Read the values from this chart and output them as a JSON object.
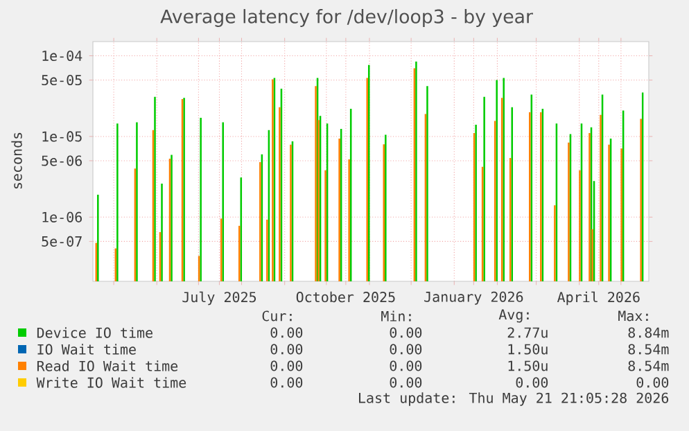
{
  "chart_data": {
    "type": "bar",
    "title": "Average latency for /dev/loop3 - by year",
    "ylabel": "seconds",
    "log": "y",
    "grid": true,
    "legend": "bottom",
    "xlim": [
      "2025-04-16",
      "2026-05-21"
    ],
    "xticks": [
      {
        "value": "2025-05-01",
        "label": null
      },
      {
        "value": "2025-06-01",
        "label": null
      },
      {
        "value": "2025-07-01",
        "label": null
      },
      {
        "value": "2025-07-16",
        "label": "July 2025"
      },
      {
        "value": "2025-08-01",
        "label": null
      },
      {
        "value": "2025-09-01",
        "label": null
      },
      {
        "value": "2025-10-01",
        "label": null
      },
      {
        "value": "2025-10-15",
        "label": "October 2025"
      },
      {
        "value": "2025-11-01",
        "label": null
      },
      {
        "value": "2025-12-01",
        "label": null
      },
      {
        "value": "2026-01-01",
        "label": null
      },
      {
        "value": "2026-01-15",
        "label": "January 2026"
      },
      {
        "value": "2026-02-01",
        "label": null
      },
      {
        "value": "2026-03-01",
        "label": null
      },
      {
        "value": "2026-04-01",
        "label": null
      },
      {
        "value": "2026-04-15",
        "label": "April 2026"
      },
      {
        "value": "2026-05-01",
        "label": null
      }
    ],
    "ylim": [
      1.6e-07,
      0.00015
    ],
    "yticks": [
      {
        "value": 5e-07,
        "label": "5e-07"
      },
      {
        "value": 1e-06,
        "label": "1e-06"
      },
      {
        "value": 5e-06,
        "label": "5e-06"
      },
      {
        "value": 1e-05,
        "label": "1e-05"
      },
      {
        "value": 5e-05,
        "label": "5e-05"
      },
      {
        "value": 0.0001,
        "label": "1e-04"
      }
    ],
    "x": [
      "2025-04-19",
      "2025-05-03",
      "2025-05-17",
      "2025-05-30",
      "2025-06-04",
      "2025-06-11",
      "2025-06-20",
      "2025-07-02",
      "2025-07-18",
      "2025-07-31",
      "2025-08-15",
      "2025-08-20",
      "2025-08-24",
      "2025-08-29",
      "2025-09-06",
      "2025-09-24",
      "2025-09-26",
      "2025-10-01",
      "2025-10-11",
      "2025-10-18",
      "2025-10-31",
      "2025-11-12",
      "2025-12-04",
      "2025-12-12",
      "2026-01-16",
      "2026-01-22",
      "2026-01-31",
      "2026-02-05",
      "2026-02-11",
      "2026-02-25",
      "2026-03-05",
      "2026-03-15",
      "2026-03-25",
      "2026-04-02",
      "2026-04-09",
      "2026-04-11",
      "2026-04-17",
      "2026-04-23",
      "2026-05-02",
      "2026-05-16"
    ],
    "series": [
      {
        "name": "Device IO time",
        "color": "#00cc00",
        "values": [
          1.9e-06,
          1.45e-05,
          1.5e-05,
          3.1e-05,
          2.6e-06,
          5.9e-06,
          3e-05,
          1.7e-05,
          1.5e-05,
          3.1e-06,
          6e-06,
          1.2e-05,
          5.3e-05,
          3.9e-05,
          8.7e-06,
          5.3e-05,
          1.8e-05,
          1.45e-05,
          1.24e-05,
          2.2e-05,
          7.7e-05,
          1.05e-05,
          8.5e-05,
          4.2e-05,
          1.4e-05,
          3.1e-05,
          5e-05,
          5.3e-05,
          2.3e-05,
          3.3e-05,
          2.2e-05,
          1.45e-05,
          1.07e-05,
          1.45e-05,
          1.3e-05,
          2.8e-06,
          3.3e-05,
          9.4e-06,
          2.1e-05,
          3.5e-05
        ]
      },
      {
        "name": "IO Wait time",
        "color": "#0066b3",
        "values": [
          null,
          null,
          null,
          null,
          null,
          null,
          null,
          null,
          null,
          null,
          null,
          null,
          null,
          null,
          null,
          null,
          null,
          null,
          null,
          null,
          null,
          null,
          null,
          null,
          null,
          null,
          null,
          null,
          null,
          null,
          null,
          null,
          null,
          null,
          null,
          null,
          null,
          null,
          null,
          null
        ]
      },
      {
        "name": "Read IO Wait time",
        "color": "#ff8000",
        "values": [
          4.8e-07,
          4.1e-07,
          4e-06,
          1.2e-05,
          6.5e-07,
          5.3e-06,
          2.9e-05,
          3.3e-07,
          9.6e-07,
          7.8e-07,
          4.8e-06,
          9.3e-07,
          5.1e-05,
          2.3e-05,
          7.9e-06,
          4.2e-05,
          1.6e-05,
          3.8e-06,
          9.4e-06,
          5.2e-06,
          5.3e-05,
          8e-06,
          7e-05,
          1.9e-05,
          1.1e-05,
          4.2e-06,
          1.56e-05,
          3e-05,
          5.4e-06,
          2e-05,
          2e-05,
          1.4e-06,
          8.4e-06,
          3.8e-06,
          1.1e-05,
          7.1e-07,
          1.85e-05,
          7.9e-06,
          7.1e-06,
          1.65e-05
        ]
      },
      {
        "name": "Write IO Wait time",
        "color": "#ffcc00",
        "values": [
          null,
          null,
          null,
          null,
          null,
          null,
          null,
          null,
          null,
          null,
          null,
          null,
          null,
          null,
          null,
          null,
          null,
          null,
          null,
          null,
          null,
          null,
          null,
          null,
          null,
          null,
          null,
          null,
          null,
          null,
          null,
          null,
          null,
          null,
          null,
          null,
          null,
          null,
          null,
          null
        ]
      }
    ],
    "annotations": [
      "Cur:",
      "Min:",
      "Avg:",
      "Max:",
      "0.00",
      "0.00",
      "2.77u",
      "8.84m",
      "0.00",
      "0.00",
      "1.50u",
      "8.54m",
      "0.00",
      "0.00",
      "1.50u",
      "8.54m",
      "0.00",
      "0.00",
      "0.00",
      "0.00",
      "Last update: Thu May 21 21:05:28 2026"
    ]
  }
}
